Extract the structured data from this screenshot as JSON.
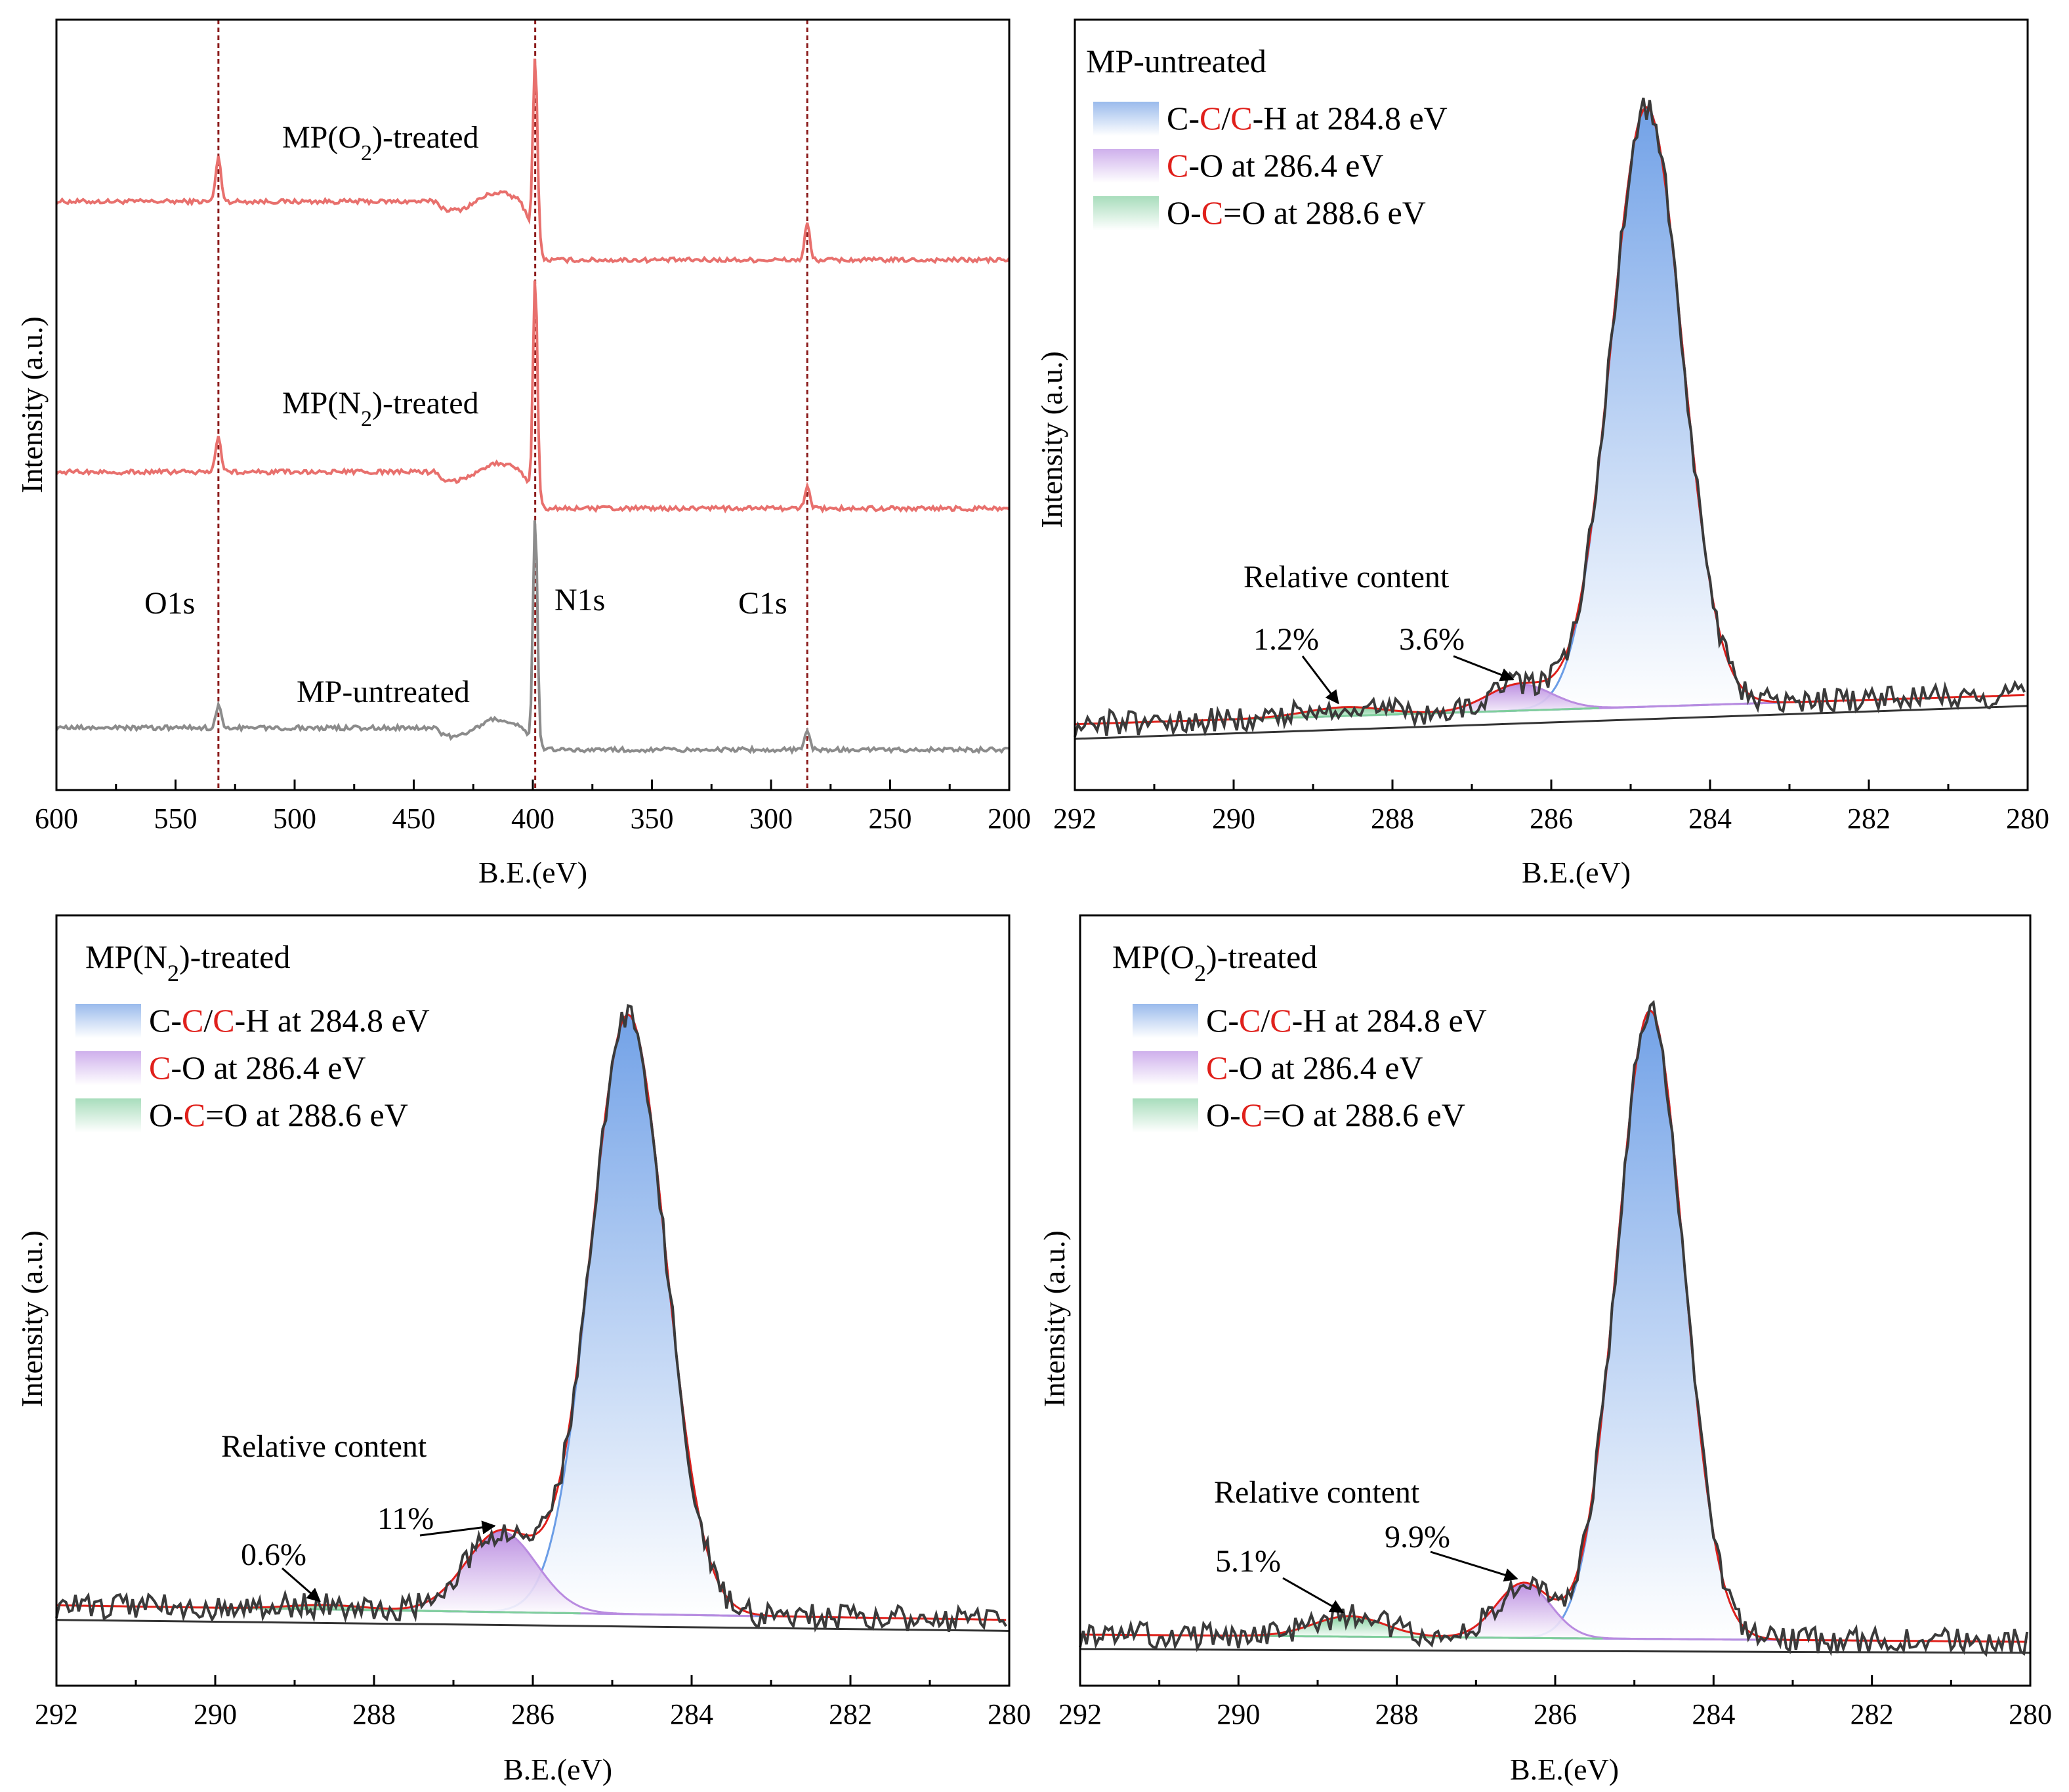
{
  "figure": {
    "panels": [
      "survey",
      "mp_untreated",
      "mp_n2",
      "mp_o2"
    ]
  },
  "chart_data": [
    {
      "id": "survey",
      "type": "line",
      "title": "",
      "xlabel": "B.E.(eV)",
      "ylabel": "Intensity (a.u.)",
      "xlim": [
        600,
        200
      ],
      "xticks": [
        "600",
        "550",
        "500",
        "450",
        "400",
        "350",
        "300",
        "250",
        "200"
      ],
      "colors": {
        "treated": "#e8706d",
        "untreated": "#8c8c8c",
        "marker": "#8b1a1a"
      },
      "peak_markers": [
        {
          "label": "O1s",
          "x": 532
        },
        {
          "label": "N1s",
          "x": 399
        },
        {
          "label": "C1s",
          "x": 284.8
        }
      ],
      "series": [
        {
          "name": "MP(O2)-treated",
          "label_main": "MP(O",
          "label_sub": "2",
          "label_tail": ")-treated",
          "baseline_hi": 0.78,
          "baseline_lo": 0.7,
          "o1s": 0.06,
          "n1s": 0.25,
          "c1s": 0.05
        },
        {
          "name": "MP(N2)-treated",
          "label_main": "MP(N",
          "label_sub": "2",
          "label_tail": ")-treated",
          "baseline_hi": 0.41,
          "baseline_lo": 0.36,
          "o1s": 0.05,
          "n1s": 0.3,
          "c1s": 0.03
        },
        {
          "name": "MP-untreated",
          "label_main": "MP-untreated",
          "label_sub": "",
          "label_tail": "",
          "baseline_hi": 0.06,
          "baseline_lo": 0.03,
          "o1s": 0.03,
          "n1s": 0.31,
          "c1s": 0.025
        }
      ]
    },
    {
      "id": "mp_untreated",
      "type": "area",
      "title": "MP-untreated",
      "title_main": "MP-untreated",
      "title_sub": "",
      "title_tail": "",
      "xlabel": "B.E.(eV)",
      "ylabel": "Intensity (a.u.)",
      "xlim": [
        292,
        280
      ],
      "xticks": [
        "292",
        "290",
        "288",
        "286",
        "284",
        "282",
        "280"
      ],
      "legend": [
        {
          "pre": "C-",
          "c1": "C",
          "mid": "/",
          "c2": "C",
          "post": "-H at 284.8 eV",
          "color": "#8fb3ea"
        },
        {
          "pre": "",
          "c1": "C",
          "mid": "-O at 286.4 eV",
          "c2": "",
          "post": "",
          "color": "#c9a7ea"
        },
        {
          "pre": "O-",
          "c1": "C",
          "mid": "=O at 288.6 eV",
          "c2": "",
          "post": "",
          "color": "#9ed9b4"
        }
      ],
      "annotation_title": "Relative content",
      "baseline": {
        "left": 0.09,
        "right": 0.13
      },
      "peaks": [
        {
          "name": "C-C/C-H",
          "center": 284.8,
          "height": 0.82,
          "sigma": 0.55,
          "color": "#6b9de6"
        },
        {
          "name": "C-O",
          "center": 286.4,
          "height": 0.036,
          "sigma": 0.5,
          "color": "#b98be0"
        },
        {
          "name": "O-C=O",
          "center": 288.6,
          "height": 0.012,
          "sigma": 0.6,
          "color": "#7fcf9c"
        }
      ],
      "relative_content": [
        {
          "label": "1.2%",
          "target": 288.6
        },
        {
          "label": "3.6%",
          "target": 286.4
        }
      ]
    },
    {
      "id": "mp_n2",
      "type": "area",
      "title": "MP(N2)-treated",
      "title_main": "MP(N",
      "title_sub": "2",
      "title_tail": ")-treated",
      "xlabel": "B.E.(eV)",
      "ylabel": "Intensity (a.u.)",
      "xlim": [
        292,
        280
      ],
      "xticks": [
        "292",
        "290",
        "288",
        "286",
        "284",
        "282",
        "280"
      ],
      "legend": [
        {
          "pre": "C-",
          "c1": "C",
          "mid": "/",
          "c2": "C",
          "post": "-H at 284.8 eV",
          "color": "#8fb3ea"
        },
        {
          "pre": "",
          "c1": "C",
          "mid": "-O at 286.4 eV",
          "c2": "",
          "post": "",
          "color": "#c9a7ea"
        },
        {
          "pre": "O-",
          "c1": "C",
          "mid": "=O at 288.6 eV",
          "c2": "",
          "post": "",
          "color": "#9ed9b4"
        }
      ],
      "annotation_title": "Relative content",
      "baseline": {
        "left": 0.11,
        "right": 0.09
      },
      "peaks": [
        {
          "name": "C-C/C-H",
          "center": 284.8,
          "height": 0.82,
          "sigma": 0.58,
          "color": "#6b9de6"
        },
        {
          "name": "C-O",
          "center": 286.4,
          "height": 0.11,
          "sigma": 0.55,
          "color": "#b98be0"
        },
        {
          "name": "O-C=O",
          "center": 288.6,
          "height": 0.006,
          "sigma": 0.6,
          "color": "#7fcf9c"
        }
      ],
      "relative_content": [
        {
          "label": "0.6%",
          "target": 288.6
        },
        {
          "label": "11%",
          "target": 286.4
        }
      ]
    },
    {
      "id": "mp_o2",
      "type": "area",
      "title": "MP(O2)-treated",
      "title_main": "MP(O",
      "title_sub": "2",
      "title_tail": ")-treated",
      "xlabel": "B.E.(eV)",
      "ylabel": "Intensity (a.u.)",
      "xlim": [
        292,
        280
      ],
      "xticks": [
        "292",
        "290",
        "288",
        "286",
        "284",
        "282",
        "280"
      ],
      "legend": [
        {
          "pre": "C-",
          "c1": "C",
          "mid": "/",
          "c2": "C",
          "post": "-H at 284.8 eV",
          "color": "#8fb3ea"
        },
        {
          "pre": "",
          "c1": "C",
          "mid": "-O at 286.4 eV",
          "c2": "",
          "post": "",
          "color": "#c9a7ea"
        },
        {
          "pre": "O-",
          "c1": "C",
          "mid": "=O at 288.6 eV",
          "c2": "",
          "post": "",
          "color": "#9ed9b4"
        }
      ],
      "annotation_title": "Relative content",
      "baseline": {
        "left": 0.07,
        "right": 0.06
      },
      "peaks": [
        {
          "name": "C-C/C-H",
          "center": 284.8,
          "height": 0.86,
          "sigma": 0.52,
          "color": "#6b9de6"
        },
        {
          "name": "C-O",
          "center": 286.4,
          "height": 0.075,
          "sigma": 0.42,
          "color": "#b98be0"
        },
        {
          "name": "O-C=O",
          "center": 288.6,
          "height": 0.028,
          "sigma": 0.55,
          "color": "#7fcf9c"
        }
      ],
      "relative_content": [
        {
          "label": "5.1%",
          "target": 288.6
        },
        {
          "label": "9.9%",
          "target": 286.4
        }
      ]
    }
  ]
}
